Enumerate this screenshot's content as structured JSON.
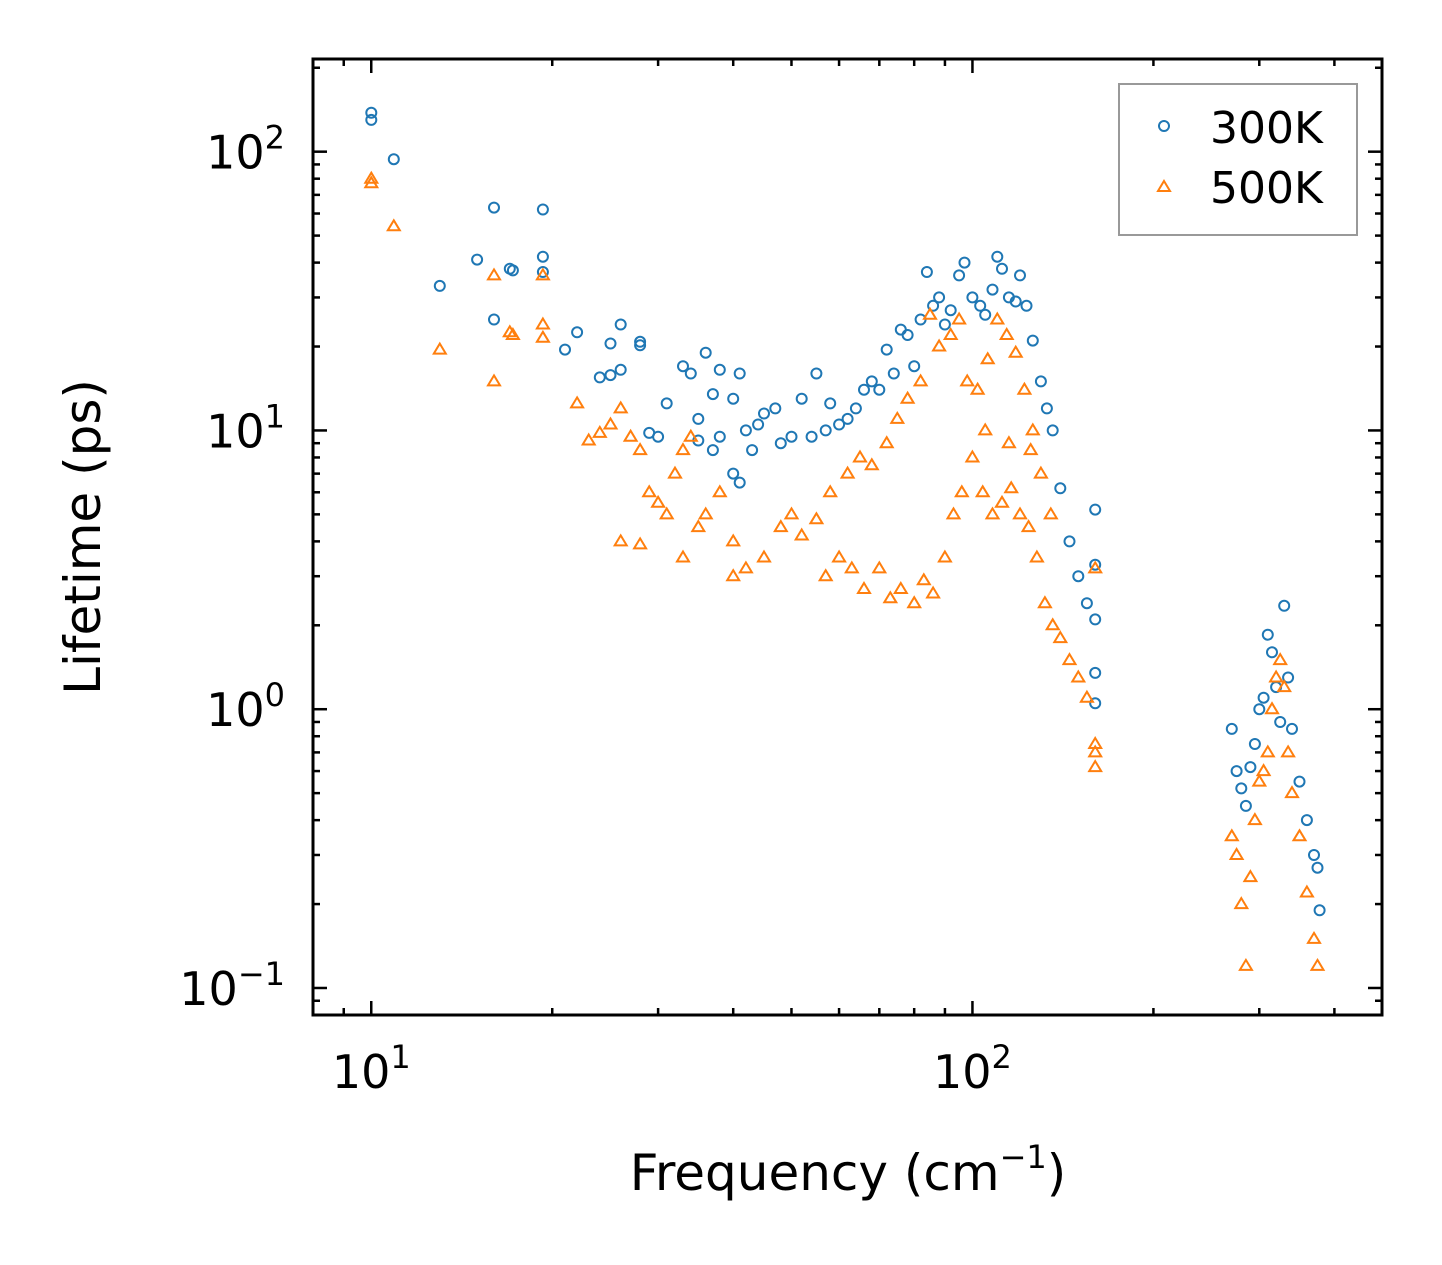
{
  "chart_data": {
    "type": "scatter",
    "title": "",
    "xlabel": "Frequency (cm",
    "xlabel_superscript": "−1",
    "xlabel_suffix": ")",
    "ylabel": "Lifetime (ps)",
    "xscale": "log",
    "yscale": "log",
    "xlim": [
      8.0,
      480
    ],
    "ylim": [
      0.08,
      215
    ],
    "x_major_ticks": [
      {
        "value": 10,
        "base": "10",
        "exp": "1"
      },
      {
        "value": 100,
        "base": "10",
        "exp": "2"
      }
    ],
    "y_major_ticks": [
      {
        "value": 0.1,
        "base": "10",
        "exp": "−1"
      },
      {
        "value": 1,
        "base": "10",
        "exp": "0"
      },
      {
        "value": 10,
        "base": "10",
        "exp": "1"
      },
      {
        "value": 100,
        "base": "10",
        "exp": "2"
      }
    ],
    "legend_position": "top-right",
    "series": [
      {
        "name": "300K",
        "marker": "circle",
        "color": "#1f77b4",
        "points": [
          [
            10.0,
            138
          ],
          [
            10.0,
            130
          ],
          [
            10.9,
            94
          ],
          [
            13.0,
            33
          ],
          [
            15.0,
            41
          ],
          [
            16.0,
            63
          ],
          [
            16.0,
            25
          ],
          [
            17.0,
            38
          ],
          [
            17.2,
            37.5
          ],
          [
            19.3,
            62
          ],
          [
            19.3,
            42
          ],
          [
            19.3,
            37
          ],
          [
            21.0,
            19.5
          ],
          [
            22.0,
            22.5
          ],
          [
            24.0,
            15.5
          ],
          [
            25.0,
            20.5
          ],
          [
            25.0,
            15.8
          ],
          [
            26.0,
            24
          ],
          [
            26.0,
            16.5
          ],
          [
            28.0,
            20.8
          ],
          [
            28.0,
            20.2
          ],
          [
            29.0,
            9.8
          ],
          [
            30.0,
            9.5
          ],
          [
            31.0,
            12.5
          ],
          [
            33.0,
            17
          ],
          [
            34.0,
            16
          ],
          [
            35.0,
            11
          ],
          [
            36.0,
            19
          ],
          [
            37.0,
            13.5
          ],
          [
            38.0,
            16.5
          ],
          [
            40.0,
            13
          ],
          [
            41.0,
            16
          ],
          [
            42.0,
            10
          ],
          [
            35.0,
            9.2
          ],
          [
            37.0,
            8.5
          ],
          [
            38.0,
            9.5
          ],
          [
            40.0,
            7
          ],
          [
            41.0,
            6.5
          ],
          [
            43.0,
            8.5
          ],
          [
            44.0,
            10.5
          ],
          [
            45.0,
            11.5
          ],
          [
            47.0,
            12
          ],
          [
            48.0,
            9
          ],
          [
            50.0,
            9.5
          ],
          [
            52.0,
            13
          ],
          [
            54.0,
            9.5
          ],
          [
            55.0,
            16
          ],
          [
            57.0,
            10
          ],
          [
            58.0,
            12.5
          ],
          [
            60.0,
            10.5
          ],
          [
            62.0,
            11
          ],
          [
            64.0,
            12
          ],
          [
            66.0,
            14
          ],
          [
            68.0,
            15
          ],
          [
            70.0,
            14
          ],
          [
            72.0,
            19.5
          ],
          [
            74.0,
            16
          ],
          [
            76.0,
            23
          ],
          [
            78.0,
            22
          ],
          [
            80.0,
            17
          ],
          [
            82.0,
            25
          ],
          [
            84.0,
            37
          ],
          [
            86.0,
            28
          ],
          [
            88.0,
            30
          ],
          [
            90.0,
            24
          ],
          [
            92.0,
            27
          ],
          [
            95.0,
            36
          ],
          [
            97.0,
            40
          ],
          [
            100.0,
            30
          ],
          [
            103.0,
            28
          ],
          [
            105.0,
            26
          ],
          [
            108.0,
            32
          ],
          [
            110.0,
            42
          ],
          [
            112.0,
            38
          ],
          [
            115.0,
            30
          ],
          [
            118.0,
            29
          ],
          [
            120.0,
            36
          ],
          [
            123.0,
            28
          ],
          [
            126.0,
            21
          ],
          [
            130.0,
            15
          ],
          [
            133.0,
            12
          ],
          [
            136.0,
            10
          ],
          [
            140.0,
            6.2
          ],
          [
            145.0,
            4
          ],
          [
            150.0,
            3
          ],
          [
            155.0,
            2.4
          ],
          [
            160.0,
            5.2
          ],
          [
            160.0,
            3.3
          ],
          [
            160.0,
            2.1
          ],
          [
            160.0,
            1.35
          ],
          [
            160.0,
            1.05
          ],
          [
            270.0,
            0.85
          ],
          [
            275.0,
            0.6
          ],
          [
            280.0,
            0.52
          ],
          [
            285.0,
            0.45
          ],
          [
            290.0,
            0.62
          ],
          [
            295.0,
            0.75
          ],
          [
            300.0,
            1.0
          ],
          [
            305.0,
            1.1
          ],
          [
            310.0,
            1.85
          ],
          [
            315.0,
            1.6
          ],
          [
            320.0,
            1.2
          ],
          [
            325.0,
            0.9
          ],
          [
            330.0,
            2.35
          ],
          [
            335.0,
            1.3
          ],
          [
            340.0,
            0.85
          ],
          [
            350.0,
            0.55
          ],
          [
            360.0,
            0.4
          ],
          [
            370.0,
            0.3
          ],
          [
            375.0,
            0.27
          ],
          [
            378.0,
            0.19
          ]
        ]
      },
      {
        "name": "500K",
        "marker": "triangle",
        "color": "#ff7f0e",
        "points": [
          [
            10.0,
            80
          ],
          [
            10.0,
            77
          ],
          [
            10.9,
            54
          ],
          [
            13.0,
            19.5
          ],
          [
            16.0,
            36
          ],
          [
            16.0,
            15
          ],
          [
            17.0,
            22.5
          ],
          [
            17.2,
            22
          ],
          [
            19.3,
            36
          ],
          [
            19.3,
            24
          ],
          [
            19.3,
            21.5
          ],
          [
            22.0,
            12.5
          ],
          [
            23.0,
            9.2
          ],
          [
            24.0,
            9.8
          ],
          [
            25.0,
            10.5
          ],
          [
            26.0,
            12
          ],
          [
            27.0,
            9.5
          ],
          [
            28.0,
            8.5
          ],
          [
            29.0,
            6
          ],
          [
            30.0,
            5.5
          ],
          [
            31.0,
            5
          ],
          [
            32.0,
            7
          ],
          [
            33.0,
            8.5
          ],
          [
            34.0,
            9.5
          ],
          [
            35.0,
            4.5
          ],
          [
            36.0,
            5
          ],
          [
            38.0,
            6
          ],
          [
            40.0,
            4
          ],
          [
            26.0,
            4
          ],
          [
            28.0,
            3.9
          ],
          [
            33.0,
            3.5
          ],
          [
            40.0,
            3
          ],
          [
            42.0,
            3.2
          ],
          [
            45.0,
            3.5
          ],
          [
            48.0,
            4.5
          ],
          [
            50.0,
            5
          ],
          [
            52.0,
            4.2
          ],
          [
            55.0,
            4.8
          ],
          [
            57.0,
            3
          ],
          [
            60.0,
            3.5
          ],
          [
            63.0,
            3.2
          ],
          [
            66.0,
            2.7
          ],
          [
            70.0,
            3.2
          ],
          [
            73.0,
            2.5
          ],
          [
            76.0,
            2.7
          ],
          [
            80.0,
            2.4
          ],
          [
            83.0,
            2.9
          ],
          [
            86.0,
            2.6
          ],
          [
            90.0,
            3.5
          ],
          [
            93.0,
            5
          ],
          [
            96.0,
            6
          ],
          [
            100.0,
            8
          ],
          [
            104.0,
            6
          ],
          [
            108.0,
            5
          ],
          [
            112.0,
            5.5
          ],
          [
            116.0,
            6.2
          ],
          [
            120.0,
            5
          ],
          [
            124.0,
            4.5
          ],
          [
            128.0,
            3.5
          ],
          [
            132.0,
            2.4
          ],
          [
            136.0,
            2
          ],
          [
            140.0,
            1.8
          ],
          [
            145.0,
            1.5
          ],
          [
            150.0,
            1.3
          ],
          [
            155.0,
            1.1
          ],
          [
            160.0,
            3.2
          ],
          [
            160.0,
            0.75
          ],
          [
            160.0,
            0.7
          ],
          [
            160.0,
            0.62
          ],
          [
            58.0,
            6
          ],
          [
            62.0,
            7
          ],
          [
            65.0,
            8
          ],
          [
            68.0,
            7.5
          ],
          [
            72.0,
            9
          ],
          [
            75.0,
            11
          ],
          [
            78.0,
            13
          ],
          [
            82.0,
            15
          ],
          [
            85.0,
            26
          ],
          [
            88.0,
            20
          ],
          [
            92.0,
            22
          ],
          [
            95.0,
            25
          ],
          [
            98.0,
            15
          ],
          [
            102.0,
            14
          ],
          [
            106.0,
            18
          ],
          [
            110.0,
            25
          ],
          [
            114.0,
            22
          ],
          [
            118.0,
            19
          ],
          [
            122.0,
            14
          ],
          [
            126.0,
            10
          ],
          [
            130.0,
            7
          ],
          [
            135.0,
            5
          ],
          [
            105.0,
            10
          ],
          [
            115.0,
            9
          ],
          [
            125.0,
            8.5
          ],
          [
            270.0,
            0.35
          ],
          [
            275.0,
            0.3
          ],
          [
            280.0,
            0.2
          ],
          [
            285.0,
            0.12
          ],
          [
            290.0,
            0.25
          ],
          [
            295.0,
            0.4
          ],
          [
            300.0,
            0.55
          ],
          [
            305.0,
            0.6
          ],
          [
            310.0,
            0.7
          ],
          [
            315.0,
            1.0
          ],
          [
            320.0,
            1.3
          ],
          [
            325.0,
            1.5
          ],
          [
            330.0,
            1.2
          ],
          [
            335.0,
            0.7
          ],
          [
            340.0,
            0.5
          ],
          [
            350.0,
            0.35
          ],
          [
            360.0,
            0.22
          ],
          [
            370.0,
            0.15
          ],
          [
            375.0,
            0.12
          ]
        ]
      }
    ]
  }
}
